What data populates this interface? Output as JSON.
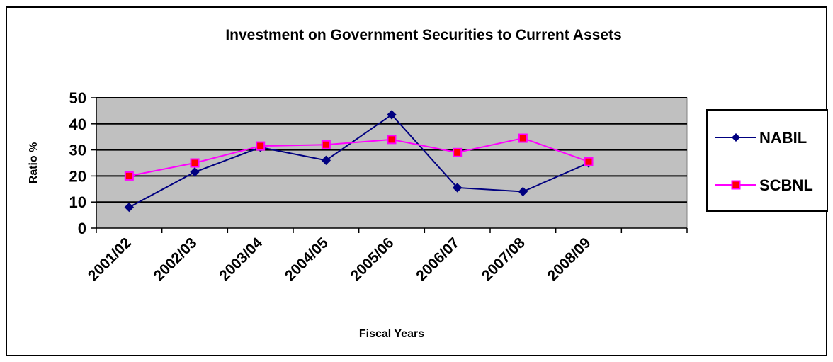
{
  "chart_data": {
    "type": "line",
    "title": "Investment on Government Securities to Current Assets",
    "xlabel": "Fiscal Years",
    "ylabel": "Ratio %",
    "categories": [
      "2001/02",
      "2002/03",
      "2003/04",
      "2004/05",
      "2005/06",
      "2006/07",
      "2007/08",
      "2008/09"
    ],
    "ylim": [
      0,
      50
    ],
    "yticks": [
      "0",
      "10",
      "20",
      "30",
      "40",
      "50"
    ],
    "grid": true,
    "legend_position": "right",
    "series": [
      {
        "name": "NABIL",
        "values": [
          8,
          21.5,
          31,
          26,
          43.5,
          15.5,
          14,
          25
        ],
        "color": "#000080",
        "marker": "diamond"
      },
      {
        "name": "SCBNL",
        "values": [
          20,
          25,
          31.5,
          32,
          34,
          29,
          34.5,
          25.5
        ],
        "color": "#FF00FF",
        "marker": "square",
        "marker_fill": "#FF0000"
      }
    ],
    "plot_background": "#C0C0C0"
  }
}
